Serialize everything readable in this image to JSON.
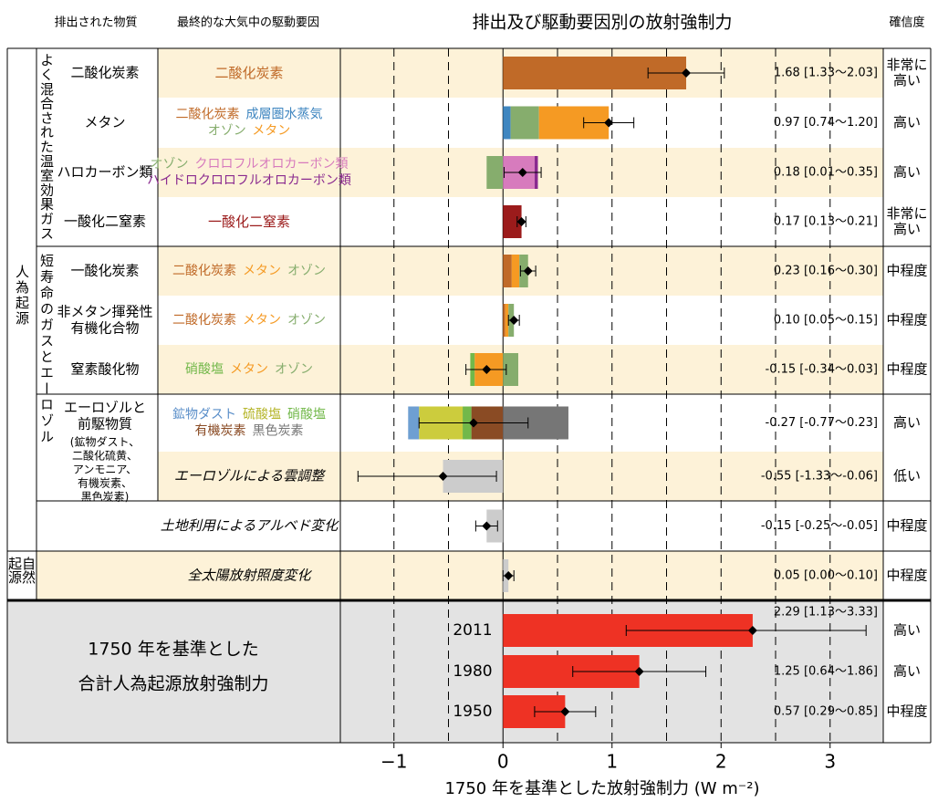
{
  "header": {
    "emitted": "排出された物質",
    "driver": "最終的な大気中の駆動要因",
    "confidence": "確信度"
  },
  "groups": {
    "anthropogenic": "人為起源",
    "wmghg": "よく混合された温室効果ガス",
    "slcf": "短寿命のガスとエーロゾル",
    "natural": [
      "自然",
      "起源"
    ]
  },
  "chart_data": {
    "type": "bar",
    "orientation": "horizontal",
    "stacked": true,
    "title": "排出及び駆動要因別の放射強制力",
    "x_label": "1750 年を基準とした放射強制力 (W m⁻²)",
    "xlim": [
      -1.5,
      3.5
    ],
    "xticks": [
      {
        "value": -1,
        "label": "−1"
      },
      0,
      1,
      2,
      3
    ],
    "grid": [
      -1,
      -0.5,
      0.5,
      1,
      1.5,
      2,
      2.5,
      3
    ],
    "positive_color": "#e03a25",
    "negative_color": "#2e4d9c",
    "rows": [
      {
        "emitted": {
          "lines": [
            "二酸化炭素"
          ]
        },
        "drivers": [
          [
            {
              "text": "二酸化炭素",
              "color": "#c06a28"
            }
          ]
        ],
        "segments": [
          {
            "value": 1.68,
            "color": "#c06a28"
          }
        ],
        "value": 1.68,
        "low": 1.33,
        "high": 2.03,
        "value_label": "1.68 [1.33～2.03]",
        "confidence": [
          "非常に",
          "高い"
        ]
      },
      {
        "emitted": {
          "lines": [
            "メタン"
          ]
        },
        "drivers": [
          [
            {
              "text": "二酸化炭素",
              "color": "#c06a28"
            },
            {
              "text": "成層圏水蒸気",
              "color": "#3f86c0"
            }
          ],
          [
            {
              "text": "オゾン",
              "color": "#86ad6d"
            },
            {
              "text": "メタン",
              "color": "#f59a23"
            }
          ]
        ],
        "segments": [
          {
            "value": 0.07,
            "color": "#3f86c0"
          },
          {
            "value": 0.26,
            "color": "#86ad6d"
          },
          {
            "value": 0.64,
            "color": "#f59a23"
          }
        ],
        "value": 0.97,
        "low": 0.74,
        "high": 1.2,
        "value_label": "0.97 [0.74～1.20]",
        "confidence": [
          "高い"
        ]
      },
      {
        "emitted": {
          "lines": [
            "ハロカーボン類"
          ]
        },
        "drivers": [
          [
            {
              "text": "オゾン",
              "color": "#86ad6d"
            },
            {
              "text": "クロロフルオロカーボン類",
              "color": "#d77bbd"
            }
          ],
          [
            {
              "text": "ハイドロクロロフルオロカーボン類",
              "color": "#8a2a8f"
            }
          ]
        ],
        "segments": [
          {
            "value": -0.15,
            "color": "#86ad6d"
          },
          {
            "value": 0.29,
            "color": "#d77bbd"
          },
          {
            "value": 0.03,
            "color": "#8a2a8f"
          }
        ],
        "value": 0.18,
        "low": 0.01,
        "high": 0.35,
        "value_label": "0.18 [0.01～0.35]",
        "confidence": [
          "高い"
        ]
      },
      {
        "emitted": {
          "lines": [
            "一酸化二窒素"
          ]
        },
        "drivers": [
          [
            {
              "text": "一酸化二窒素",
              "color": "#9b1b1b"
            }
          ]
        ],
        "segments": [
          {
            "value": 0.17,
            "color": "#9b1b1b"
          }
        ],
        "value": 0.17,
        "low": 0.13,
        "high": 0.21,
        "value_label": "0.17 [0.13～0.21]",
        "confidence": [
          "非常に",
          "高い"
        ]
      },
      {
        "emitted": {
          "lines": [
            "一酸化炭素"
          ]
        },
        "drivers": [
          [
            {
              "text": "二酸化炭素",
              "color": "#c06a28"
            },
            {
              "text": "メタン",
              "color": "#f59a23"
            },
            {
              "text": "オゾン",
              "color": "#86ad6d"
            }
          ]
        ],
        "segments": [
          {
            "value": 0.08,
            "color": "#c06a28"
          },
          {
            "value": 0.07,
            "color": "#f59a23"
          },
          {
            "value": 0.08,
            "color": "#86ad6d"
          }
        ],
        "value": 0.23,
        "low": 0.16,
        "high": 0.3,
        "value_label": "0.23 [0.16～0.30]",
        "confidence": [
          "中程度"
        ]
      },
      {
        "emitted": {
          "lines": [
            "非メタン揮発性",
            "有機化合物"
          ]
        },
        "drivers": [
          [
            {
              "text": "二酸化炭素",
              "color": "#c06a28"
            },
            {
              "text": "メタン",
              "color": "#f59a23"
            },
            {
              "text": "オゾン",
              "color": "#86ad6d"
            }
          ]
        ],
        "segments": [
          {
            "value": 0.02,
            "color": "#c06a28"
          },
          {
            "value": 0.03,
            "color": "#f59a23"
          },
          {
            "value": 0.05,
            "color": "#86ad6d"
          }
        ],
        "value": 0.1,
        "low": 0.05,
        "high": 0.15,
        "value_label": "0.10 [0.05～0.15]",
        "confidence": [
          "中程度"
        ]
      },
      {
        "emitted": {
          "lines": [
            "窒素酸化物"
          ]
        },
        "drivers": [
          [
            {
              "text": "硝酸塩",
              "color": "#72b84a"
            },
            {
              "text": "メタン",
              "color": "#f59a23"
            },
            {
              "text": "オゾン",
              "color": "#86ad6d"
            }
          ]
        ],
        "segments": [
          {
            "value": -0.26,
            "color": "#f59a23"
          },
          {
            "value": -0.04,
            "color": "#72b84a"
          },
          {
            "value": 0.14,
            "color": "#86ad6d"
          }
        ],
        "value": -0.15,
        "low": -0.34,
        "high": 0.03,
        "value_label": "-0.15 [-0.34～0.03]",
        "confidence": [
          "中程度"
        ]
      },
      {
        "emitted": {
          "lines": [
            "エーロゾルと",
            "前駆物質"
          ],
          "sub": [
            {
              "text": "(鉱物ダスト、",
              "color": "#5b8fc9"
            },
            {
              "text": "二酸化硫黄、",
              "color": "#b5b52a"
            },
            {
              "text": "アンモニア、",
              "color": "#72b84a"
            },
            {
              "text": "有機炭素、",
              "color": "#8a4b24"
            },
            {
              "text": "黒色炭素)",
              "color": "#767676"
            }
          ]
        },
        "drivers": [
          [
            {
              "text": "鉱物ダスト",
              "color": "#5b8fc9"
            },
            {
              "text": "硫酸塩",
              "color": "#b5b52a"
            },
            {
              "text": "硝酸塩",
              "color": "#72b84a"
            }
          ],
          [
            {
              "text": "有機炭素",
              "color": "#8a4b24"
            },
            {
              "text": "黒色炭素",
              "color": "#767676"
            }
          ]
        ],
        "segments": [
          {
            "value": -0.29,
            "color": "#8a4b24"
          },
          {
            "value": -0.08,
            "color": "#72b84a"
          },
          {
            "value": -0.4,
            "color": "#cccc3d"
          },
          {
            "value": -0.1,
            "color": "#6e9fd2"
          },
          {
            "value": 0.6,
            "color": "#767676"
          }
        ],
        "value": -0.27,
        "low": -0.77,
        "high": 0.23,
        "value_label": "-0.27 [-0.77～0.23]",
        "confidence": [
          "高い"
        ]
      },
      {
        "description": "エーロゾルによる雲調整",
        "segments": [
          {
            "value": -0.55,
            "color": "#cccccc"
          }
        ],
        "value": -0.55,
        "low": -1.33,
        "high": -0.06,
        "value_label": "-0.55 [-1.33～-0.06]",
        "confidence": [
          "低い"
        ]
      },
      {
        "description": "土地利用によるアルベド変化",
        "segments": [
          {
            "value": -0.15,
            "color": "#cccccc"
          }
        ],
        "value": -0.15,
        "low": -0.25,
        "high": -0.05,
        "value_label": "-0.15 [-0.25～-0.05]",
        "confidence": [
          "中程度"
        ]
      },
      {
        "description": "全太陽放射照度変化",
        "segments": [
          {
            "value": 0.05,
            "color": "#cccccc"
          }
        ],
        "value": 0.05,
        "low": 0.0,
        "high": 0.1,
        "value_label": "0.05 [0.00～0.10]",
        "confidence": [
          "中程度"
        ]
      }
    ],
    "totals": {
      "label": [
        "1750 年を基準とした",
        "合計人為起源放射強制力"
      ],
      "color": "#ee3224",
      "rows": [
        {
          "year": "2011",
          "value": 2.29,
          "low": 1.13,
          "high": 3.33,
          "value_label": "2.29 [1.13～3.33]",
          "confidence": [
            "高い"
          ]
        },
        {
          "year": "1980",
          "value": 1.25,
          "low": 0.64,
          "high": 1.86,
          "value_label": "1.25 [0.64～1.86]",
          "confidence": [
            "高い"
          ]
        },
        {
          "year": "1950",
          "value": 0.57,
          "low": 0.29,
          "high": 0.85,
          "value_label": "0.57 [0.29～0.85]",
          "confidence": [
            "中程度"
          ]
        }
      ]
    }
  }
}
